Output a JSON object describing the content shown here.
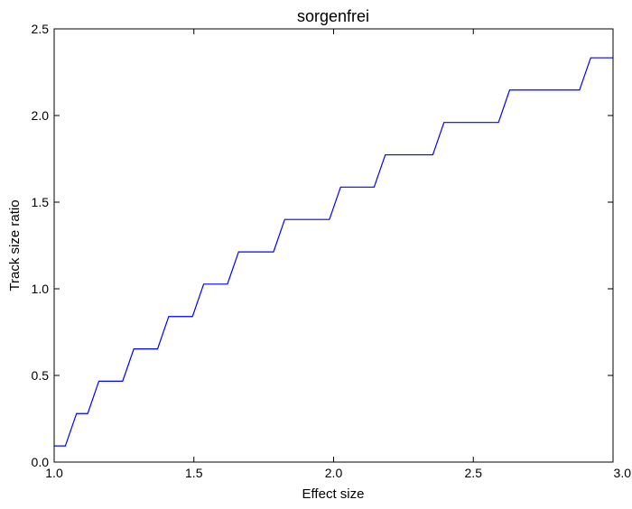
{
  "chart_data": {
    "type": "line",
    "title": "sorgenfrei",
    "xlabel": "Effect size",
    "ylabel": "Track size ratio",
    "xlim": [
      1.0,
      3.0
    ],
    "ylim": [
      0.0,
      2.5
    ],
    "xticks": [
      "1.0",
      "1.5",
      "2.0",
      "2.5",
      "3.0"
    ],
    "yticks": [
      "0.0",
      "0.5",
      "1.0",
      "1.5",
      "2.0",
      "2.5"
    ],
    "grid": false,
    "legend": "none",
    "series": [
      {
        "color": "#0000ff",
        "x": [
          1.0,
          1.04,
          1.08,
          1.12,
          1.16,
          1.245,
          1.285,
          1.37,
          1.41,
          1.495,
          1.535,
          1.62,
          1.66,
          1.785,
          1.825,
          1.985,
          2.025,
          2.145,
          2.185,
          2.355,
          2.395,
          2.59,
          2.63,
          2.88,
          2.92,
          3.0
        ],
        "y": [
          0.093,
          0.093,
          0.28,
          0.28,
          0.467,
          0.467,
          0.653,
          0.653,
          0.84,
          0.84,
          1.027,
          1.027,
          1.213,
          1.213,
          1.4,
          1.4,
          1.587,
          1.587,
          1.773,
          1.773,
          1.96,
          1.96,
          2.147,
          2.147,
          2.333,
          2.333
        ]
      }
    ]
  }
}
